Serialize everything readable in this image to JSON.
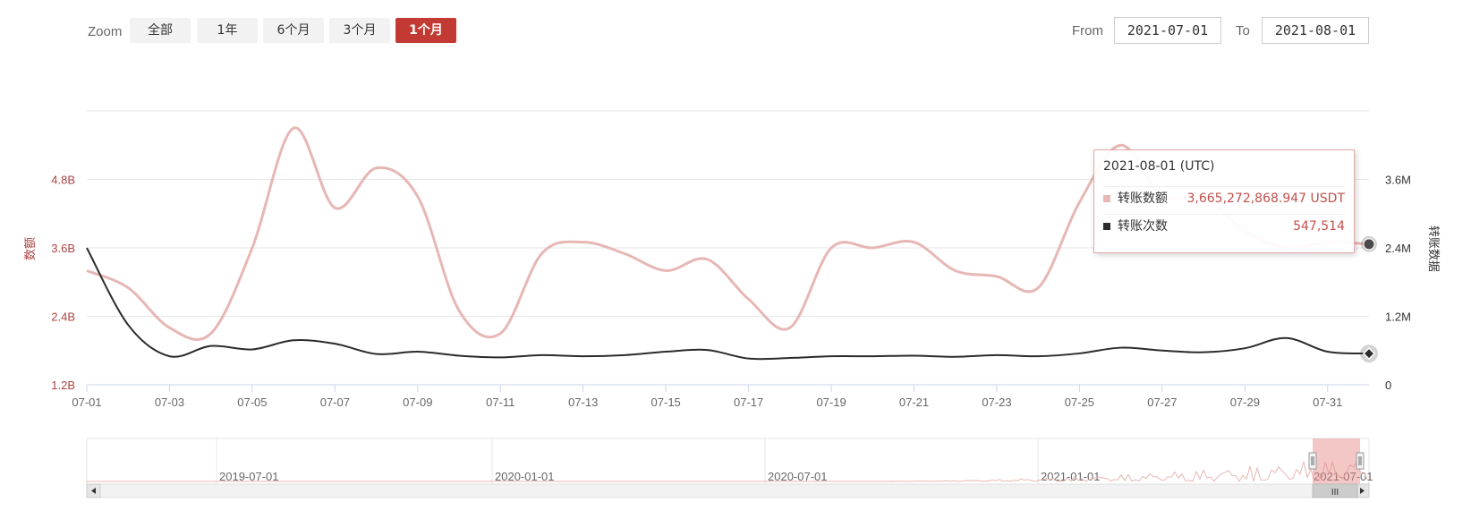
{
  "toolbar": {
    "zoom_label": "Zoom",
    "zoom_buttons": [
      {
        "label": "全部",
        "active": false
      },
      {
        "label": "1年",
        "active": false
      },
      {
        "label": "6个月",
        "active": false
      },
      {
        "label": "3个月",
        "active": false
      },
      {
        "label": "1个月",
        "active": true
      }
    ],
    "from_label": "From",
    "from_value": "2021-07-01",
    "to_label": "To",
    "to_value": "2021-08-01"
  },
  "colors": {
    "amount": "#e6b7b4",
    "count": "#2b2b2b",
    "accent": "#c33a35",
    "axis_left": "#a94442",
    "grid": "#e6e6e6"
  },
  "tooltip": {
    "date": "2021-08-01 (UTC)",
    "rows": [
      {
        "name": "转账数额",
        "value": "3,665,272,868.947 USDT",
        "color": "#e6b7b4"
      },
      {
        "name": "转账次数",
        "value": "547,514",
        "color": "#2b2b2b"
      }
    ]
  },
  "chart_data": {
    "type": "line",
    "x": [
      "07-01",
      "07-02",
      "07-03",
      "07-04",
      "07-05",
      "07-06",
      "07-07",
      "07-08",
      "07-09",
      "07-10",
      "07-11",
      "07-12",
      "07-13",
      "07-14",
      "07-15",
      "07-16",
      "07-17",
      "07-18",
      "07-19",
      "07-20",
      "07-21",
      "07-22",
      "07-23",
      "07-24",
      "07-25",
      "07-26",
      "07-27",
      "07-28",
      "07-29",
      "07-30",
      "07-31",
      "08-01"
    ],
    "x_tick_labels": [
      "07-01",
      "07-03",
      "07-05",
      "07-07",
      "07-09",
      "07-11",
      "07-13",
      "07-15",
      "07-17",
      "07-19",
      "07-21",
      "07-23",
      "07-25",
      "07-27",
      "07-29",
      "07-31"
    ],
    "series": [
      {
        "name": "转账数额",
        "axis": "left",
        "values": [
          3.2,
          2.9,
          2.2,
          2.1,
          3.6,
          5.7,
          4.3,
          5.0,
          4.5,
          2.5,
          2.1,
          3.5,
          3.7,
          3.5,
          3.2,
          3.4,
          2.7,
          2.2,
          3.6,
          3.6,
          3.7,
          3.2,
          3.1,
          2.9,
          4.4,
          5.4,
          4.5,
          4.5,
          3.9,
          3.6,
          3.7,
          3.665
        ]
      },
      {
        "name": "转账次数",
        "axis": "right",
        "values": [
          2400000,
          1050000,
          500000,
          680000,
          620000,
          780000,
          720000,
          540000,
          580000,
          510000,
          480000,
          520000,
          500000,
          520000,
          580000,
          610000,
          460000,
          470000,
          500000,
          500000,
          510000,
          490000,
          520000,
          500000,
          550000,
          650000,
          600000,
          570000,
          640000,
          820000,
          580000,
          547514
        ]
      }
    ],
    "y_left": {
      "label": "数额",
      "ticks": [
        "1.2B",
        "2.4B",
        "3.6B",
        "4.8B"
      ],
      "range_billion": [
        1.2,
        6.0
      ]
    },
    "y_right": {
      "label": "转账数据",
      "ticks": [
        "0",
        "1.2M",
        "2.4M",
        "3.6M"
      ],
      "range": [
        0,
        4800000
      ]
    },
    "grid": true,
    "navigator": {
      "date_labels": [
        "2019-07-01",
        "2020-01-01",
        "2020-07-01",
        "2021-01-01",
        "2021-07-01"
      ],
      "scroll_thumb": "III"
    }
  }
}
